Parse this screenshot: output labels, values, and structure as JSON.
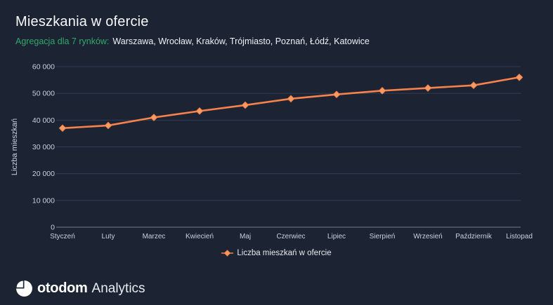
{
  "header": {
    "title": "Mieszkania w ofercie",
    "subtitle_highlight": "Agregacja dla 7 rynków:",
    "subtitle_rest": "Warszawa, Wrocław, Kraków, Trójmiasto, Poznań, Łódź, Katowice"
  },
  "colors": {
    "background": "#1c2433",
    "line_orange": "#f7824c",
    "marker_fill": "#f99a61",
    "accent_green": "#31a968",
    "grid": "#323d53",
    "axis_line": "#707b8f",
    "tick_text": "#c9d0dd"
  },
  "chart_data": {
    "type": "line",
    "title": "Mieszkania w ofercie",
    "x": [
      "Styczeń",
      "Luty",
      "Marzec",
      "Kwiecień",
      "Maj",
      "Czerwiec",
      "Lipiec",
      "Sierpień",
      "Wrzesień",
      "Październik",
      "Listopad"
    ],
    "series": [
      {
        "name": "Liczba mieszkań w ofercie",
        "values": [
          37000,
          38000,
          41000,
          43400,
          45600,
          48000,
          49600,
          51000,
          52000,
          53000,
          56000
        ]
      }
    ],
    "xlabel": "",
    "ylabel": "Liczba mieszkań",
    "ylim": [
      0,
      60000
    ],
    "ytick_step": 10000,
    "ytick_labels": [
      "0",
      "10 000",
      "20 000",
      "30 000",
      "40 000",
      "50 000",
      "60 000"
    ],
    "grid": true,
    "legend_position": "bottom",
    "marker": "diamond"
  },
  "legend": {
    "label": "Liczba mieszkań w ofercie"
  },
  "footer": {
    "brand_bold": "otodom",
    "brand_regular": "Analytics"
  }
}
